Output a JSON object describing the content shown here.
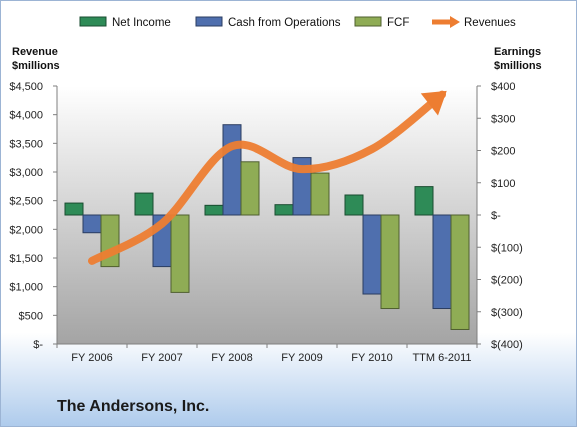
{
  "company": "The Andersons, Inc.",
  "chart_data": {
    "type": "bar",
    "categories": [
      "FY 2006",
      "FY 2007",
      "FY 2008",
      "FY 2009",
      "FY 2010",
      "TTM 6-2011"
    ],
    "left_axis": {
      "label_line1": "Revenue",
      "label_line2": "$millions",
      "range": [
        0,
        4500
      ],
      "ticks": [
        0,
        500,
        1000,
        1500,
        2000,
        2500,
        3000,
        3500,
        4000,
        4500
      ],
      "tick_labels": [
        "$-",
        "$500",
        "$1,000",
        "$1,500",
        "$2,000",
        "$2,500",
        "$3,000",
        "$3,500",
        "$4,000",
        "$4,500"
      ]
    },
    "right_axis": {
      "label_line1": "Earnings",
      "label_line2": "$millions",
      "range": [
        -400,
        400
      ],
      "ticks": [
        -400,
        -300,
        -200,
        -100,
        0,
        100,
        200,
        300,
        400
      ],
      "tick_labels": [
        "$(400)",
        "$(300)",
        "$(200)",
        "$(100)",
        "$-",
        "$100",
        "$200",
        "$300",
        "$400"
      ]
    },
    "series": [
      {
        "name": "Net Income",
        "axis": "right",
        "kind": "bar",
        "color": "#2e8b57",
        "values": [
          37,
          68,
          30,
          32,
          62,
          88
        ]
      },
      {
        "name": "Cash from Operations",
        "axis": "right",
        "kind": "bar",
        "color": "#4f6fae",
        "values": [
          -55,
          -160,
          280,
          178,
          -245,
          -290
        ]
      },
      {
        "name": "FCF",
        "axis": "right",
        "kind": "bar",
        "color": "#8fac55",
        "values": [
          -160,
          -240,
          165,
          130,
          -290,
          -355
        ]
      },
      {
        "name": "Revenues",
        "axis": "left",
        "kind": "line",
        "color": "#ed7d31",
        "values": [
          1450,
          2100,
          3450,
          3050,
          3400,
          4350
        ]
      }
    ],
    "legend_position": "top",
    "grid": false
  }
}
